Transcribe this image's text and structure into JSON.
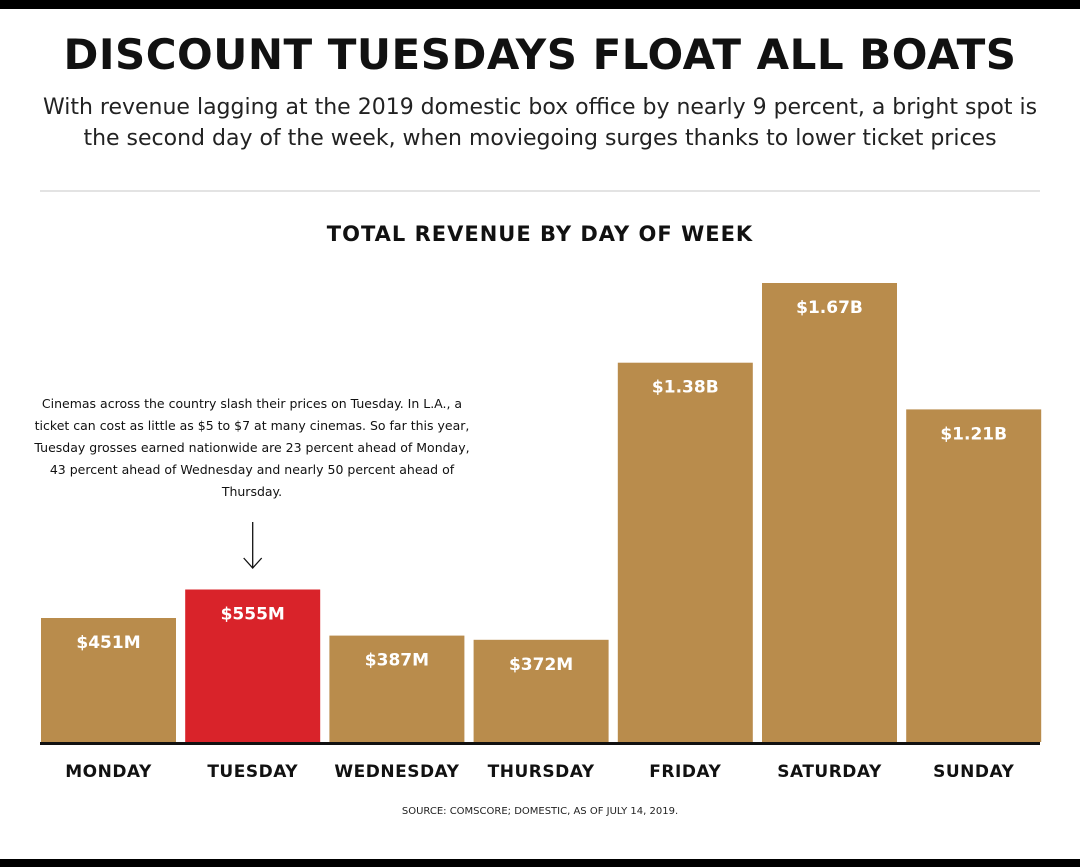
{
  "headline": "DISCOUNT TUESDAYS FLOAT ALL BOATS",
  "dek": "With revenue lagging at the 2019 domestic box office by nearly 9 percent, a bright spot is the second day of the week, when moviegoing surges thanks to lower ticket prices",
  "annotation": "Cinemas across the country slash their prices on Tuesday. In L.A., a ticket can cost as little as $5 to $7 at many cinemas. So far this year, Tuesday grosses earned nationwide are 23 percent ahead of Monday, 43 percent ahead of Wednesday and nearly 50 percent ahead of Thursday.",
  "annotation_target": "TUESDAY",
  "source": "SOURCE: COMSCORE; DOMESTIC, AS OF JULY 14, 2019.",
  "colors": {
    "bar": "#b98c4c",
    "highlight": "#d9232a",
    "axis": "#111111",
    "value_label": "#ffffff"
  },
  "chart_data": {
    "type": "bar",
    "title": "TOTAL REVENUE BY DAY OF WEEK",
    "categories": [
      "MONDAY",
      "TUESDAY",
      "WEDNESDAY",
      "THURSDAY",
      "FRIDAY",
      "SATURDAY",
      "SUNDAY"
    ],
    "values": [
      451,
      555,
      387,
      372,
      1380,
      1670,
      1210
    ],
    "unit": "million USD",
    "data_labels": [
      "$451M",
      "$555M",
      "$387M",
      "$372M",
      "$1.38B",
      "$1.67B",
      "$1.21B"
    ],
    "highlight": "TUESDAY",
    "ylim": [
      0,
      1670
    ],
    "grid": false,
    "legend": "none"
  }
}
